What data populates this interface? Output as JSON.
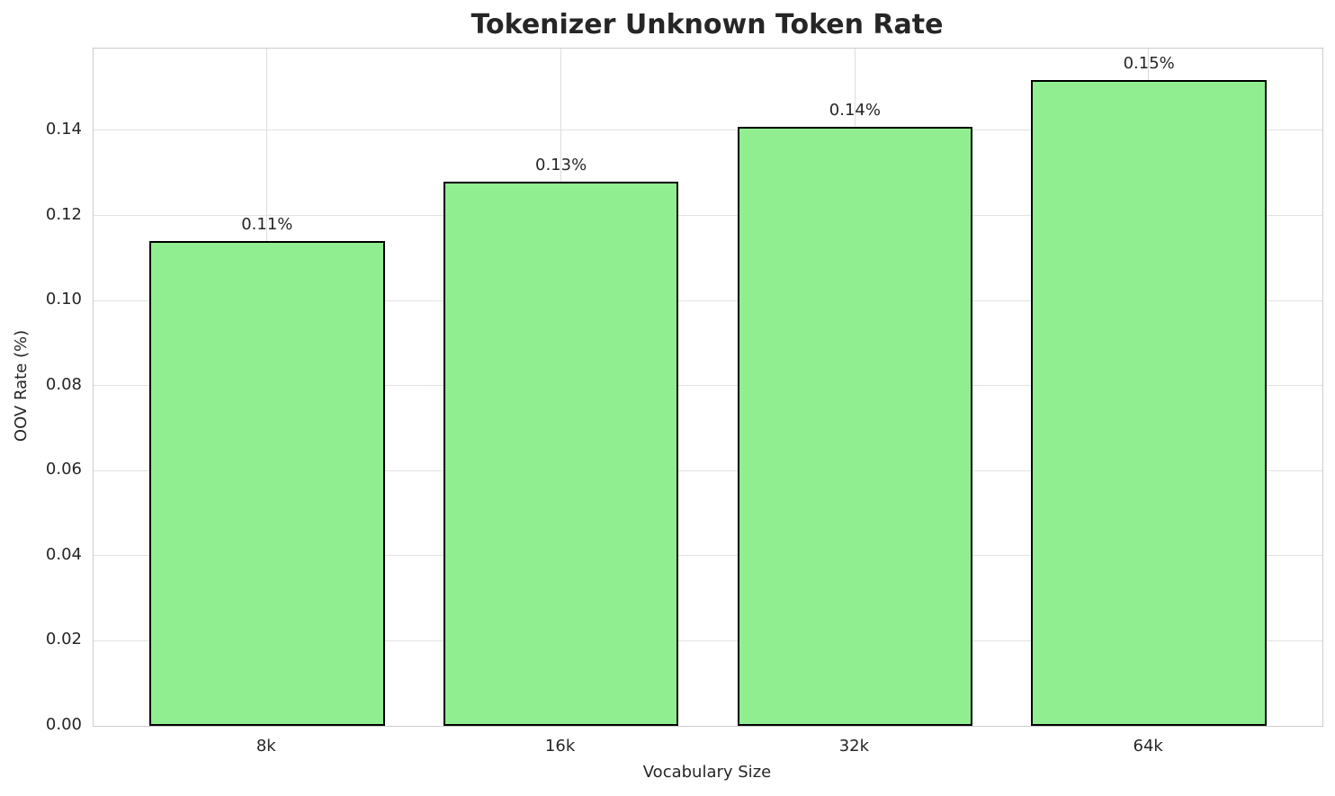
{
  "chart_data": {
    "type": "bar",
    "title": "Tokenizer Unknown Token Rate",
    "xlabel": "Vocabulary Size",
    "ylabel": "OOV Rate (%)",
    "categories": [
      "8k",
      "16k",
      "32k",
      "64k"
    ],
    "values": [
      0.114,
      0.128,
      0.141,
      0.152
    ],
    "bar_labels": [
      "0.11%",
      "0.13%",
      "0.14%",
      "0.15%"
    ],
    "y_tick_labels": [
      "0.00",
      "0.02",
      "0.04",
      "0.06",
      "0.08",
      "0.10",
      "0.12",
      "0.14"
    ],
    "y_tick_values": [
      0.0,
      0.02,
      0.04,
      0.06,
      0.08,
      0.1,
      0.12,
      0.14
    ],
    "ylim": [
      0,
      0.1593
    ],
    "grid": true,
    "grid_axes": "both",
    "legend": "none",
    "bar_color": "#90EE90",
    "bar_edge_color": "#000000",
    "grid_color": "#e2e2e2",
    "spine_color": "#cccccc",
    "text_color": "#262626",
    "background_color": "#ffffff"
  }
}
